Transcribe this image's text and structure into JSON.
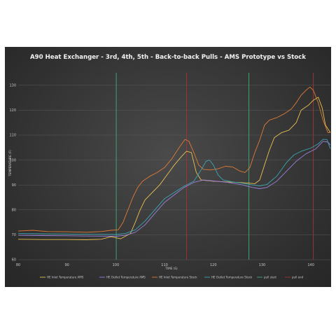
{
  "chart_data": {
    "type": "line",
    "title": "A90 Heat Exchanger - 3rd, 4th, 5th - Back-to-back Pulls - AMS Prototype vs Stock",
    "xlabel": "TIME (S)",
    "ylabel": "TEMPERATURE (F)",
    "xlim": [
      80,
      144
    ],
    "ylim": [
      60,
      135
    ],
    "x_ticks": [
      "80",
      "90",
      "100",
      "110",
      "120",
      "130",
      "140"
    ],
    "y_ticks": [
      "60",
      "70",
      "80",
      "90",
      "100",
      "110",
      "120",
      "130"
    ],
    "grid": true,
    "legend_position": "bottom",
    "series": [
      {
        "name": "HE Inlet Temperature AMS",
        "color": "#e8c050",
        "points": [
          [
            80,
            68.2
          ],
          [
            85,
            68.1
          ],
          [
            90,
            68.1
          ],
          [
            94,
            68.0
          ],
          [
            97,
            68.2
          ],
          [
            99,
            69.2
          ],
          [
            101,
            68.4
          ],
          [
            103,
            70.5
          ],
          [
            104,
            75
          ],
          [
            105,
            80
          ],
          [
            106,
            84
          ],
          [
            107.5,
            87
          ],
          [
            109,
            90
          ],
          [
            110.5,
            94
          ],
          [
            112,
            98
          ],
          [
            113.5,
            101.5
          ],
          [
            114.5,
            103.5
          ],
          [
            115.5,
            103
          ],
          [
            116.5,
            95
          ],
          [
            117.5,
            92
          ],
          [
            120,
            91.5
          ],
          [
            123,
            91.2
          ],
          [
            125,
            91
          ],
          [
            127,
            90.8
          ],
          [
            128.5,
            90.5
          ],
          [
            129.5,
            92
          ],
          [
            130.5,
            98
          ],
          [
            131.5,
            104
          ],
          [
            132.5,
            109
          ],
          [
            134,
            111
          ],
          [
            135.5,
            112
          ],
          [
            137,
            115
          ],
          [
            138,
            120
          ],
          [
            139.5,
            122
          ],
          [
            140.5,
            124
          ],
          [
            141.5,
            125.2
          ],
          [
            142.3,
            121
          ],
          [
            143,
            114
          ],
          [
            144,
            111
          ]
        ]
      },
      {
        "name": "HE Outlet Temperature AMS",
        "color": "#9b7fd8",
        "points": [
          [
            80,
            69.8
          ],
          [
            85,
            69.7
          ],
          [
            90,
            69.6
          ],
          [
            95,
            69.5
          ],
          [
            100,
            69.4
          ],
          [
            102,
            69.8
          ],
          [
            104,
            71
          ],
          [
            106,
            74
          ],
          [
            108,
            78.5
          ],
          [
            110,
            83
          ],
          [
            112,
            86
          ],
          [
            114,
            89
          ],
          [
            116,
            91
          ],
          [
            118,
            92
          ],
          [
            120,
            91.6
          ],
          [
            123,
            91
          ],
          [
            126,
            90
          ],
          [
            128,
            89
          ],
          [
            129.5,
            88.5
          ],
          [
            131,
            89
          ],
          [
            133,
            91.5
          ],
          [
            135,
            95.5
          ],
          [
            137,
            99.5
          ],
          [
            139,
            102.5
          ],
          [
            141,
            104.5
          ],
          [
            142.5,
            107.5
          ],
          [
            143.5,
            107.2
          ],
          [
            144,
            106
          ]
        ]
      },
      {
        "name": "HE Inlet Temperature Stock",
        "color": "#e07a35",
        "points": [
          [
            80,
            71.5
          ],
          [
            83,
            71.8
          ],
          [
            86,
            71.3
          ],
          [
            90,
            71.2
          ],
          [
            94,
            71.0
          ],
          [
            97,
            71.3
          ],
          [
            99,
            71.8
          ],
          [
            100.5,
            72
          ],
          [
            101.5,
            75
          ],
          [
            102.5,
            80
          ],
          [
            103.5,
            85
          ],
          [
            104.5,
            89
          ],
          [
            105.5,
            91.5
          ],
          [
            107,
            93.5
          ],
          [
            108.5,
            95
          ],
          [
            110,
            97
          ],
          [
            111.5,
            100.5
          ],
          [
            113,
            105
          ],
          [
            114.2,
            108.3
          ],
          [
            115,
            107.5
          ],
          [
            116,
            103
          ],
          [
            117,
            98
          ],
          [
            118,
            96.2
          ],
          [
            119.5,
            96
          ],
          [
            121,
            96.5
          ],
          [
            122.5,
            97.5
          ],
          [
            124,
            97.2
          ],
          [
            125.5,
            95.5
          ],
          [
            126.5,
            95
          ],
          [
            127.5,
            97
          ],
          [
            128.5,
            103
          ],
          [
            129.5,
            108
          ],
          [
            130.5,
            114
          ],
          [
            131.5,
            116
          ],
          [
            133,
            117
          ],
          [
            134.5,
            118.5
          ],
          [
            136,
            120.5
          ],
          [
            137,
            123
          ],
          [
            138,
            126
          ],
          [
            139,
            128
          ],
          [
            139.8,
            129.3
          ],
          [
            140.5,
            128
          ],
          [
            141.5,
            123
          ],
          [
            142.5,
            116
          ],
          [
            143.5,
            111
          ],
          [
            144,
            111
          ]
        ]
      },
      {
        "name": "HE Outlet Temperature Stock",
        "color": "#3aa5b0",
        "points": [
          [
            80,
            70.5
          ],
          [
            85,
            70.4
          ],
          [
            90,
            70.3
          ],
          [
            95,
            70.2
          ],
          [
            100,
            70.1
          ],
          [
            102,
            70.5
          ],
          [
            104,
            72
          ],
          [
            106,
            75.5
          ],
          [
            108,
            80
          ],
          [
            110,
            84.5
          ],
          [
            112,
            87
          ],
          [
            114,
            89.5
          ],
          [
            116,
            91.5
          ],
          [
            117.5,
            96
          ],
          [
            118.5,
            99.5
          ],
          [
            119.2,
            100
          ],
          [
            120,
            98
          ],
          [
            121,
            94
          ],
          [
            122,
            92
          ],
          [
            124,
            91.2
          ],
          [
            126,
            90.7
          ],
          [
            128,
            90
          ],
          [
            129.5,
            89.6
          ],
          [
            131,
            90.2
          ],
          [
            133,
            93.5
          ],
          [
            135,
            99
          ],
          [
            136.5,
            102
          ],
          [
            138,
            103.5
          ],
          [
            140,
            104.8
          ],
          [
            141.5,
            106.5
          ],
          [
            142.5,
            108.3
          ],
          [
            143.3,
            108.2
          ],
          [
            144,
            104.5
          ]
        ]
      },
      {
        "name": "pull start",
        "color": "#3fae7a",
        "vlines": [
          100.1,
          127.3
        ]
      },
      {
        "name": "pull end",
        "color": "#a83232",
        "vlines": [
          114.5,
          140.5
        ]
      }
    ]
  }
}
